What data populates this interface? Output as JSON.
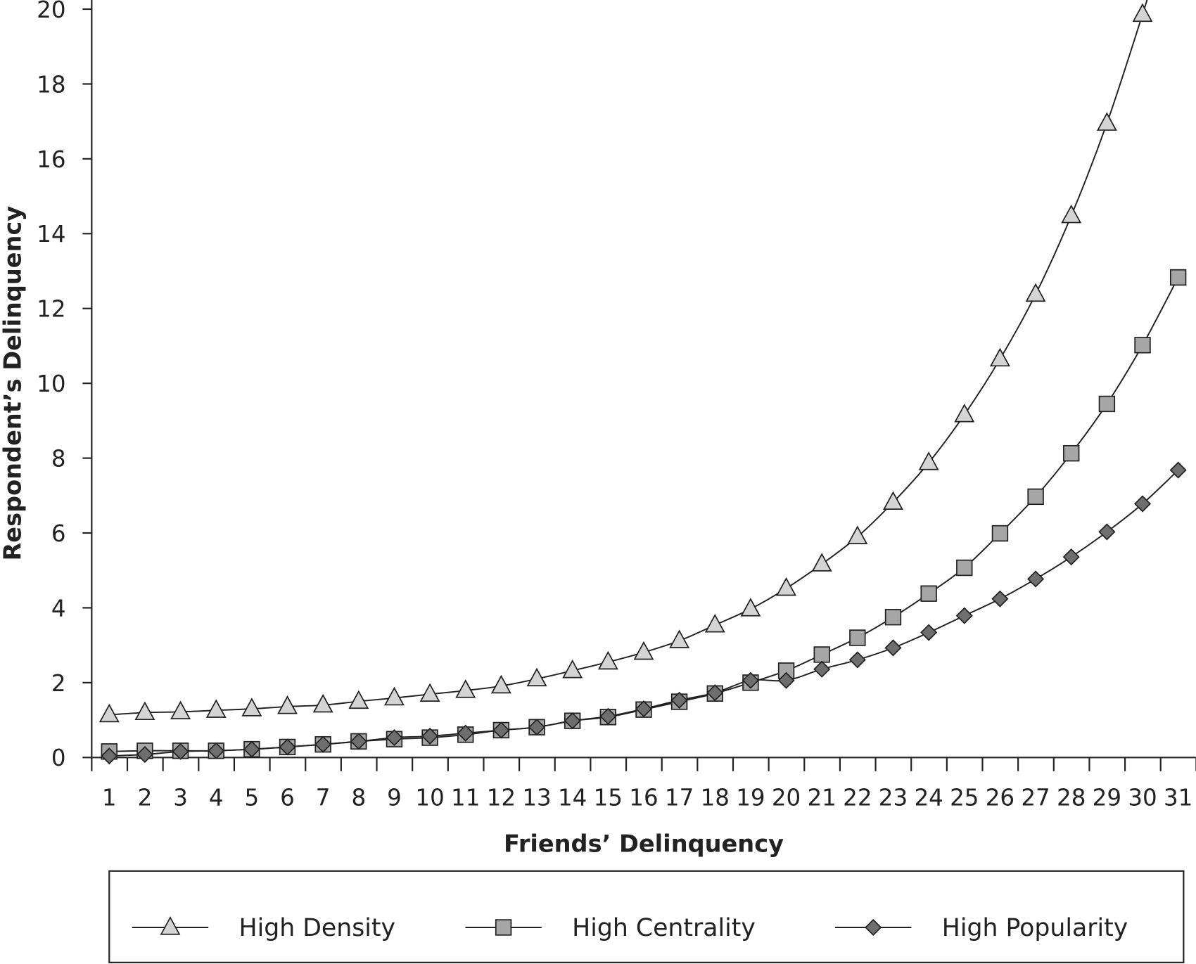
{
  "chart_data": {
    "type": "line",
    "title": "",
    "xlabel": "Friends’ Delinquency",
    "ylabel": "Respondent’s Delinquency",
    "ylim": [
      0,
      20
    ],
    "yticks": [
      0,
      2,
      4,
      6,
      8,
      10,
      12,
      14,
      16,
      18,
      20
    ],
    "x": [
      1,
      2,
      3,
      4,
      5,
      6,
      7,
      8,
      9,
      10,
      11,
      12,
      13,
      14,
      15,
      16,
      17,
      18,
      19,
      20,
      21,
      22,
      23,
      24,
      25,
      26,
      27,
      28,
      29,
      30,
      31
    ],
    "legend_position": "bottom",
    "grid": false,
    "series": [
      {
        "name": "High Density",
        "marker": "triangle",
        "fill": "#d4d4d4",
        "values": [
          1.14,
          1.2,
          1.22,
          1.26,
          1.3,
          1.36,
          1.4,
          1.5,
          1.59,
          1.69,
          1.79,
          1.91,
          2.1,
          2.32,
          2.55,
          2.81,
          3.12,
          3.54,
          3.97,
          4.52,
          5.17,
          5.9,
          6.82,
          7.88,
          9.16,
          10.65,
          12.38,
          14.48,
          16.95,
          19.86,
          null
        ]
      },
      {
        "name": "High Centrality",
        "marker": "square",
        "fill": "#a6a6a6",
        "values": [
          0.16,
          0.18,
          0.18,
          0.18,
          0.22,
          0.28,
          0.35,
          0.43,
          0.49,
          0.53,
          0.61,
          0.73,
          0.81,
          0.98,
          1.08,
          1.28,
          1.49,
          1.71,
          2.0,
          2.32,
          2.75,
          3.2,
          3.75,
          4.38,
          5.07,
          5.99,
          6.97,
          8.13,
          9.45,
          11.02,
          12.83
        ]
      },
      {
        "name": "High Popularity",
        "marker": "diamond",
        "fill": "#6e6e6e",
        "values": [
          0.04,
          0.08,
          0.16,
          0.18,
          0.22,
          0.28,
          0.35,
          0.43,
          0.53,
          0.57,
          0.65,
          0.73,
          0.81,
          0.98,
          1.1,
          1.3,
          1.53,
          1.73,
          2.06,
          2.06,
          2.36,
          2.61,
          2.93,
          3.34,
          3.79,
          4.24,
          4.77,
          5.36,
          6.03,
          6.78,
          7.68
        ]
      }
    ]
  }
}
